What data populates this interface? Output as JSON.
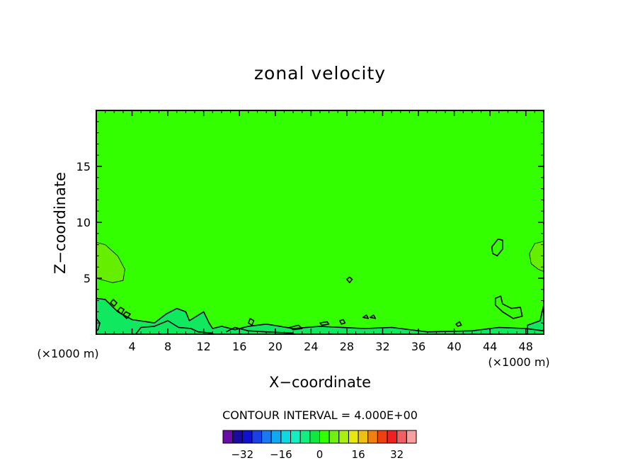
{
  "chart_data": {
    "type": "heatmap",
    "title": "zonal velocity",
    "xlabel": "X−coordinate",
    "ylabel": "Z−coordinate",
    "x_unit_left": "(×1000 m)",
    "x_unit_right": "(×1000 m)",
    "xlim": [
      0,
      50
    ],
    "ylim": [
      0,
      20
    ],
    "x_ticks": [
      4,
      8,
      12,
      16,
      20,
      24,
      28,
      32,
      36,
      40,
      44,
      48
    ],
    "x_tick_labels": [
      "4",
      "8",
      "12",
      "16",
      "20",
      "24",
      "28",
      "32",
      "36",
      "40",
      "44",
      "48"
    ],
    "y_ticks": [
      5,
      10,
      15
    ],
    "y_tick_labels": [
      "5",
      "10",
      "15"
    ],
    "field_value_dominant": 0,
    "field_color_dominant": "#33ff00",
    "contour_interval_label": "CONTOUR INTERVAL = 4.000E+00",
    "colorbar": {
      "levels": [
        -36,
        -32,
        -28,
        -24,
        -20,
        -16,
        -12,
        -8,
        -4,
        0,
        4,
        8,
        12,
        16,
        20,
        24,
        28,
        32,
        36
      ],
      "colors": [
        "#6a0da8",
        "#1a0aa0",
        "#1010d0",
        "#1a40e8",
        "#1a78f0",
        "#10a8f0",
        "#10d8e0",
        "#10f0c0",
        "#10f080",
        "#10e840",
        "#33ff00",
        "#70f010",
        "#a8f010",
        "#e8e810",
        "#f0c010",
        "#f08010",
        "#f04010",
        "#f02020",
        "#f06060",
        "#f8a0a0"
      ],
      "tick_values": [
        -32,
        -16,
        0,
        16,
        32
      ],
      "tick_labels": [
        "−32",
        "−16",
        "0",
        "16",
        "32"
      ]
    },
    "regions": [
      {
        "kind": "positive",
        "color": "#66ee00",
        "points": [
          [
            0,
            8.2
          ],
          [
            1,
            8
          ],
          [
            2.4,
            7
          ],
          [
            3.2,
            5.8
          ],
          [
            3,
            4.8
          ],
          [
            1.8,
            4.6
          ],
          [
            0,
            5
          ]
        ]
      },
      {
        "kind": "positive",
        "color": "#66ee00",
        "points": [
          [
            50,
            8.3
          ],
          [
            49,
            8.1
          ],
          [
            48.4,
            7.2
          ],
          [
            48.6,
            6.3
          ],
          [
            49.4,
            5.8
          ],
          [
            50,
            5.6
          ]
        ]
      },
      {
        "kind": "negative",
        "color": "#10e860",
        "points": [
          [
            0,
            3.2
          ],
          [
            1,
            3.1
          ],
          [
            2.4,
            2
          ],
          [
            4,
            1.3
          ],
          [
            6.5,
            1
          ],
          [
            7.8,
            1.8
          ],
          [
            9,
            2.3
          ],
          [
            10,
            2
          ],
          [
            10.4,
            1.2
          ],
          [
            12,
            2
          ],
          [
            12.6,
            1
          ],
          [
            13,
            0.5
          ],
          [
            14,
            0.7
          ],
          [
            15.5,
            0.4
          ],
          [
            17,
            0.7
          ],
          [
            19,
            0.9
          ],
          [
            22,
            0.5
          ],
          [
            25,
            0.7
          ],
          [
            30,
            0.5
          ],
          [
            33,
            0.6
          ],
          [
            37,
            0.2
          ],
          [
            42,
            0.3
          ],
          [
            45,
            0.6
          ],
          [
            48,
            0.5
          ],
          [
            50,
            0.3
          ],
          [
            50,
            0
          ],
          [
            0,
            0
          ]
        ]
      },
      {
        "kind": "negative",
        "color": "#10e860",
        "points": [
          [
            48.2,
            0.8
          ],
          [
            49.6,
            1.2
          ],
          [
            50,
            2.6
          ],
          [
            50,
            0
          ],
          [
            48.2,
            0
          ]
        ]
      }
    ],
    "contours": [
      {
        "closed": true,
        "points": [
          [
            44.2,
            7.8
          ],
          [
            44.9,
            8.5
          ],
          [
            45.4,
            8.4
          ],
          [
            45.4,
            7.6
          ],
          [
            44.8,
            7
          ],
          [
            44.3,
            7.2
          ]
        ]
      },
      {
        "closed": true,
        "points": [
          [
            28,
            4.9
          ],
          [
            28.3,
            5.1
          ],
          [
            28.6,
            4.9
          ],
          [
            28.3,
            4.6
          ]
        ]
      },
      {
        "closed": true,
        "points": [
          [
            44.6,
            3.2
          ],
          [
            45.2,
            3.4
          ],
          [
            45.4,
            2.7
          ],
          [
            46.4,
            2.3
          ],
          [
            47.4,
            2.4
          ],
          [
            47.6,
            1.6
          ],
          [
            46.6,
            1.4
          ],
          [
            45.4,
            2
          ],
          [
            44.6,
            2.6
          ]
        ]
      },
      {
        "closed": true,
        "points": [
          [
            1.6,
            2.8
          ],
          [
            2,
            2.5
          ],
          [
            2.3,
            2.8
          ],
          [
            1.9,
            3.1
          ]
        ]
      },
      {
        "closed": true,
        "points": [
          [
            2.4,
            2.1
          ],
          [
            2.8,
            1.8
          ],
          [
            3.1,
            2.2
          ],
          [
            2.7,
            2.4
          ]
        ]
      },
      {
        "closed": true,
        "points": [
          [
            3,
            1.7
          ],
          [
            3.4,
            1.4
          ],
          [
            3.8,
            1.8
          ],
          [
            3.3,
            2
          ]
        ]
      },
      {
        "closed": true,
        "points": [
          [
            17,
            1
          ],
          [
            17.4,
            0.8
          ],
          [
            17.6,
            1.2
          ],
          [
            17.2,
            1.4
          ]
        ]
      },
      {
        "closed": true,
        "points": [
          [
            21.6,
            0.6
          ],
          [
            22.6,
            0.8
          ],
          [
            23,
            0.5
          ],
          [
            22,
            0.4
          ]
        ]
      },
      {
        "closed": true,
        "points": [
          [
            25,
            1
          ],
          [
            25.8,
            1.1
          ],
          [
            26,
            0.9
          ],
          [
            25.2,
            0.8
          ]
        ]
      },
      {
        "closed": true,
        "points": [
          [
            27.2,
            1.2
          ],
          [
            27.6,
            1.3
          ],
          [
            27.8,
            1
          ],
          [
            27.4,
            0.9
          ]
        ]
      },
      {
        "closed": true,
        "points": [
          [
            29.8,
            1.5
          ],
          [
            30.2,
            1.7
          ],
          [
            30.4,
            1.4
          ]
        ]
      },
      {
        "closed": true,
        "points": [
          [
            30.6,
            1.5
          ],
          [
            31,
            1.7
          ],
          [
            31.2,
            1.4
          ]
        ]
      },
      {
        "closed": true,
        "points": [
          [
            40.2,
            0.9
          ],
          [
            40.6,
            1.1
          ],
          [
            40.8,
            0.8
          ],
          [
            40.4,
            0.7
          ]
        ]
      },
      {
        "closed": false,
        "points": [
          [
            0,
            1.4
          ],
          [
            0.4,
            1
          ],
          [
            0.2,
            0.4
          ],
          [
            0,
            0.3
          ]
        ]
      },
      {
        "closed": false,
        "points": [
          [
            0,
            3.2
          ],
          [
            1,
            3.1
          ],
          [
            2.4,
            2
          ],
          [
            4,
            1.3
          ],
          [
            6.5,
            1
          ],
          [
            7.8,
            1.8
          ],
          [
            9,
            2.3
          ],
          [
            10,
            2
          ],
          [
            10.4,
            1.2
          ],
          [
            12,
            2
          ],
          [
            12.6,
            1
          ],
          [
            13,
            0.5
          ],
          [
            14,
            0.7
          ],
          [
            15.5,
            0.4
          ],
          [
            17,
            0.7
          ],
          [
            19,
            0.9
          ],
          [
            22,
            0.5
          ],
          [
            25,
            0.7
          ],
          [
            30,
            0.5
          ],
          [
            33,
            0.6
          ],
          [
            37,
            0.2
          ],
          [
            42,
            0.3
          ],
          [
            45,
            0.6
          ],
          [
            48,
            0.5
          ],
          [
            50,
            0.3
          ]
        ]
      },
      {
        "closed": false,
        "points": [
          [
            48.2,
            0
          ],
          [
            48.2,
            0.8
          ],
          [
            49.6,
            1.2
          ],
          [
            50,
            2.6
          ]
        ]
      },
      {
        "closed": false,
        "points": [
          [
            4.4,
            0
          ],
          [
            5,
            0.6
          ],
          [
            6.5,
            0.7
          ],
          [
            8,
            1.2
          ],
          [
            9.2,
            0.6
          ],
          [
            10.6,
            0.5
          ],
          [
            11.4,
            0.2
          ],
          [
            13,
            0.1
          ]
        ]
      },
      {
        "closed": false,
        "points": [
          [
            14.5,
            0.2
          ],
          [
            15.5,
            0.6
          ],
          [
            17,
            0.3
          ],
          [
            19,
            0.2
          ],
          [
            22,
            0.1
          ]
        ]
      },
      {
        "closed": false,
        "points": [
          [
            0,
            5
          ],
          [
            1.8,
            4.6
          ],
          [
            3,
            4.8
          ],
          [
            3.2,
            5.8
          ],
          [
            2.4,
            7
          ],
          [
            1,
            8
          ],
          [
            0,
            8.2
          ]
        ],
        "thin": true
      },
      {
        "closed": false,
        "points": [
          [
            50,
            5.6
          ],
          [
            49.4,
            5.8
          ],
          [
            48.6,
            6.3
          ],
          [
            48.4,
            7.2
          ],
          [
            49,
            8.1
          ],
          [
            50,
            8.3
          ]
        ],
        "thin": true
      }
    ]
  }
}
